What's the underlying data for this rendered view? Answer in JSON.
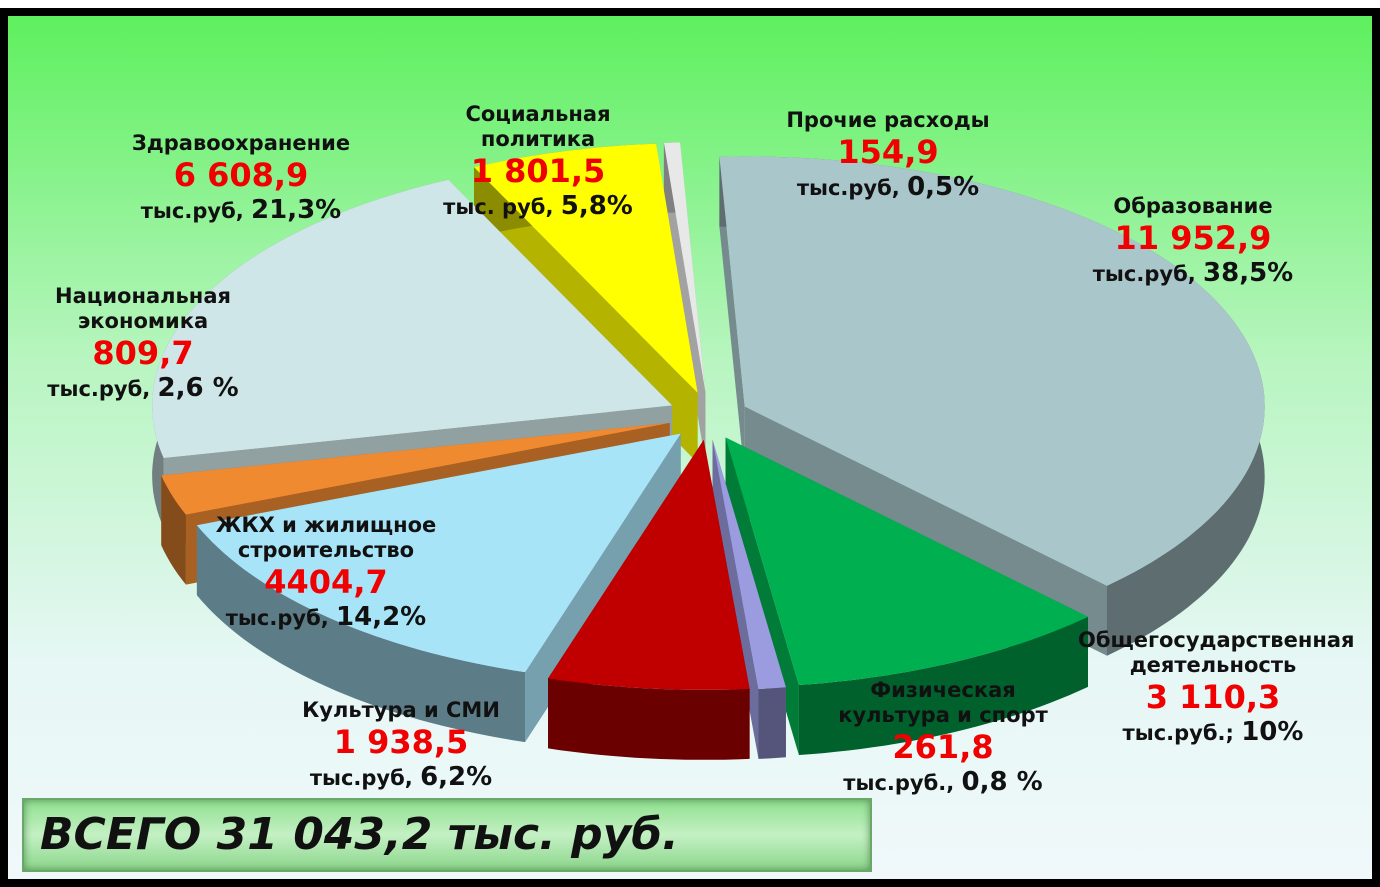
{
  "chart_data": {
    "type": "pie3d",
    "categories": [
      "Прочие расходы",
      "Образование",
      "Общегосударственная деятельность",
      "Физическая культура и спорт",
      "Культура и СМИ",
      "ЖКХ и жилищное строительство",
      "Национальная экономика",
      "Здравоохранение",
      "Социальная политика"
    ],
    "values": [
      154.9,
      11952.9,
      3110.3,
      261.8,
      1938.5,
      4404.7,
      809.7,
      6608.9,
      1801.5
    ],
    "value_labels": [
      "154,9",
      "11 952,9",
      "3 110,3",
      "261,8",
      "1 938,5",
      "4404,7",
      "809,7",
      "6  608,9",
      "1 801,5"
    ],
    "units": [
      "тыс.руб,",
      "тыс.руб,",
      "тыс.руб.;",
      "тыс.руб.,",
      "тыс.руб,",
      "тыс.руб,",
      "тыс.руб,",
      "тыс.руб,",
      "тыс. руб,"
    ],
    "percent_labels": [
      "0,5%",
      "38,5%",
      "10%",
      "0,8 %",
      "6,2%",
      "14,2%",
      "2,6 %",
      "21,3%",
      "5,8%"
    ],
    "colors": [
      "#e8e8e8",
      "#a9c6cb",
      "#00b050",
      "#9b9be0",
      "#c00000",
      "#a8e4f8",
      "#f08a30",
      "#cfe6e8",
      "#ffff00"
    ],
    "total": "ВСЕГО   31 043,2 тыс. руб."
  }
}
